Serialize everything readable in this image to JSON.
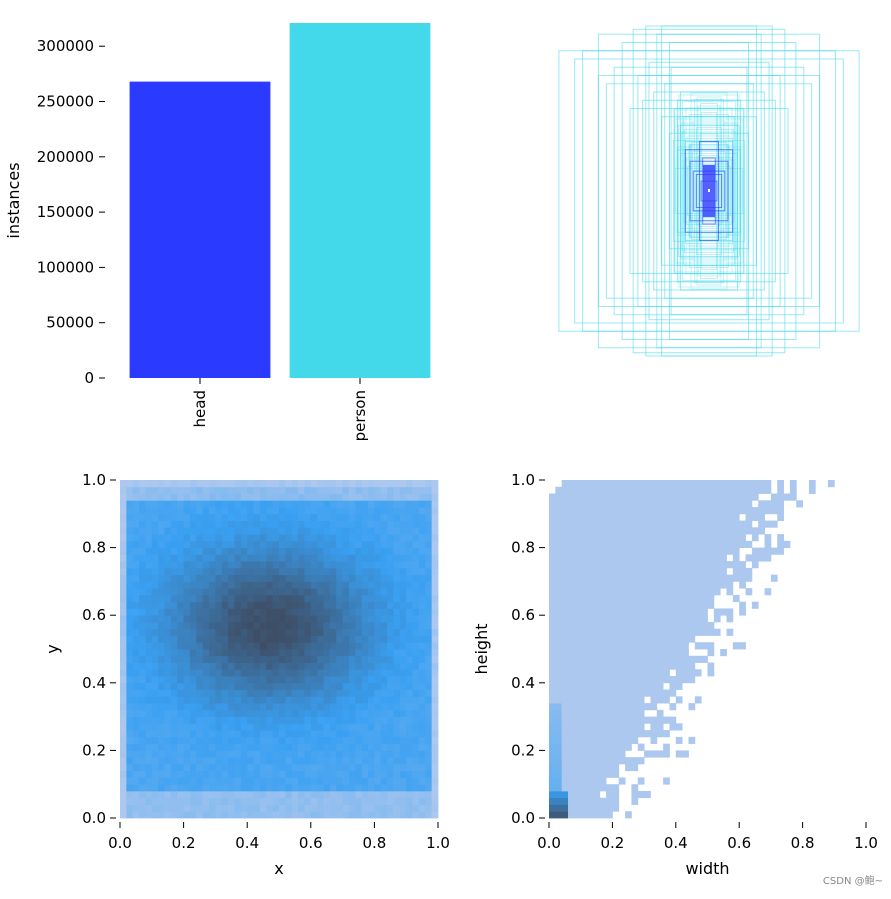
{
  "colors": {
    "head": "#2b3aff",
    "person": "#44d9ea",
    "hist_light": "#adc8ee",
    "hist_mid": "#3aa0f2",
    "hist_dark": "#3e4e66",
    "box_stroke": "#44d9ea"
  },
  "chart_data": [
    {
      "type": "bar",
      "categories": [
        "head",
        "person"
      ],
      "values": [
        268000,
        321000
      ],
      "ylabel": "instances",
      "yticks": [
        "0",
        "50000",
        "100000",
        "150000",
        "200000",
        "250000",
        "300000"
      ],
      "ytick_values": [
        0,
        50000,
        100000,
        150000,
        200000,
        250000,
        300000
      ],
      "ylim": [
        0,
        321000
      ],
      "grid": false
    },
    {
      "type": "scatter",
      "description": "overlaid centered bounding boxes (normalized width/height), no axes",
      "series": [
        {
          "name": "head",
          "boxes": [
            [
              0.05,
              0.06
            ],
            [
              0.08,
              0.1
            ],
            [
              0.1,
              0.12
            ],
            [
              0.04,
              0.2
            ],
            [
              0.12,
              0.18
            ],
            [
              0.06,
              0.3
            ],
            [
              0.15,
              0.25
            ]
          ]
        },
        {
          "name": "person",
          "boxes": [
            [
              0.3,
              1.0
            ],
            [
              0.95,
              0.85
            ],
            [
              0.7,
              0.95
            ],
            [
              0.55,
              0.9
            ],
            [
              0.4,
              1.0
            ],
            [
              0.6,
              0.75
            ],
            [
              0.8,
              0.85
            ],
            [
              0.45,
              0.7
            ],
            [
              0.25,
              0.9
            ],
            [
              0.35,
              0.6
            ],
            [
              0.2,
              0.55
            ],
            [
              0.5,
              0.5
            ],
            [
              0.3,
              0.45
            ],
            [
              0.18,
              0.4
            ],
            [
              0.25,
              0.35
            ],
            [
              0.15,
              0.3
            ],
            [
              0.12,
              0.28
            ],
            [
              0.22,
              0.5
            ],
            [
              0.28,
              0.65
            ],
            [
              0.38,
              0.78
            ],
            [
              0.65,
              0.65
            ],
            [
              0.2,
              0.25
            ],
            [
              0.16,
              0.45
            ],
            [
              0.33,
              0.95
            ],
            [
              0.85,
              0.8
            ],
            [
              0.42,
              0.55
            ],
            [
              0.24,
              0.75
            ],
            [
              0.48,
              0.98
            ],
            [
              0.18,
              0.6
            ],
            [
              0.7,
              0.7
            ]
          ]
        }
      ]
    },
    {
      "type": "heatmap",
      "xlabel": "x",
      "ylabel": "y",
      "xlim": [
        0,
        1
      ],
      "ylim": [
        0,
        1
      ],
      "xticks": [
        "0.0",
        "0.2",
        "0.4",
        "0.6",
        "0.8",
        "1.0"
      ],
      "yticks": [
        "0.0",
        "0.2",
        "0.4",
        "0.6",
        "0.8",
        "1.0"
      ],
      "tick_values": [
        0,
        0.2,
        0.4,
        0.6,
        0.8,
        1.0
      ],
      "bins": 50,
      "peak": {
        "x": 0.47,
        "y": 0.57
      }
    },
    {
      "type": "heatmap",
      "xlabel": "width",
      "ylabel": "height",
      "xlim": [
        0,
        1
      ],
      "ylim": [
        0,
        1
      ],
      "xticks": [
        "0.0",
        "0.2",
        "0.4",
        "0.6",
        "0.8",
        "1.0"
      ],
      "yticks": [
        "0.0",
        "0.2",
        "0.4",
        "0.6",
        "0.8",
        "1.0"
      ],
      "tick_values": [
        0,
        0.2,
        0.4,
        0.6,
        0.8,
        1.0
      ],
      "bins": 50,
      "peak": {
        "x": 0.01,
        "y": 0.02
      }
    }
  ],
  "watermark": "CSDN @鲍~"
}
